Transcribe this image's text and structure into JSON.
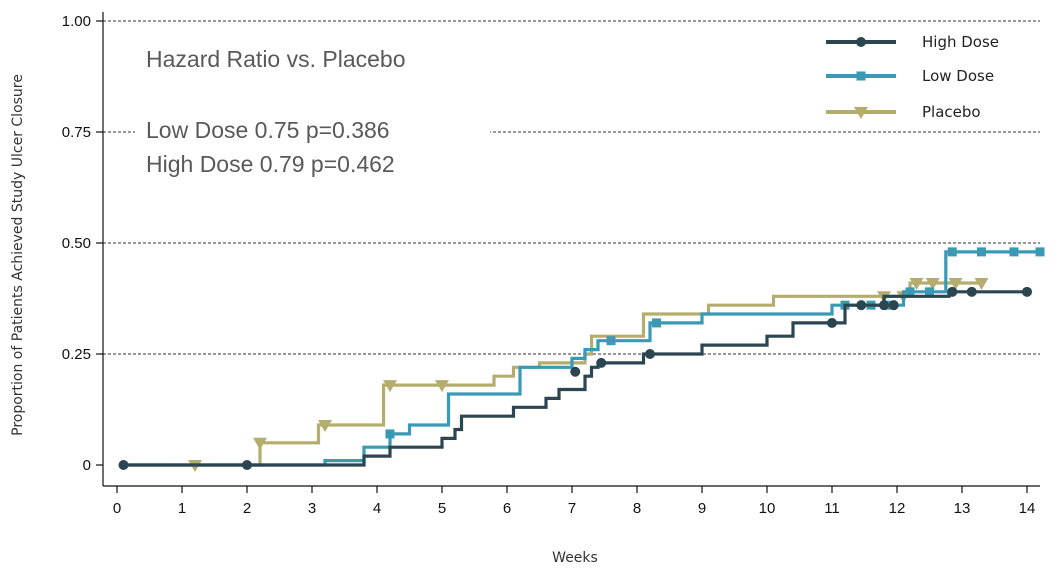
{
  "chart_data": {
    "type": "line",
    "step": true,
    "xlabel": "Weeks",
    "ylabel": "Proportion of Patients Achieved Study Ulcer Closure",
    "xlim": [
      0,
      14
    ],
    "ylim": [
      0,
      1.0
    ],
    "x_ticks": [
      0,
      1,
      2,
      3,
      4,
      5,
      6,
      7,
      8,
      9,
      10,
      11,
      12,
      13,
      14
    ],
    "y_ticks": [
      {
        "value": 0,
        "label": "0"
      },
      {
        "value": 0.25,
        "label": "0.25"
      },
      {
        "value": 0.5,
        "label": "0.50"
      },
      {
        "value": 0.75,
        "label": "0.75"
      },
      {
        "value": 1.0,
        "label": "1.00"
      }
    ],
    "grid": "horizontal-dashed",
    "legend_position": "top-right",
    "annotations": [
      "Hazard Ratio vs. Placebo",
      "Low Dose 0.75 p=0.386",
      "High Dose 0.79 p=0.462"
    ],
    "series": [
      {
        "name": "High Dose",
        "color": "#2b4651",
        "marker": "circle",
        "points": [
          [
            0.1,
            0
          ],
          [
            3.8,
            0
          ],
          [
            3.8,
            0.02
          ],
          [
            4.2,
            0.02
          ],
          [
            4.2,
            0.04
          ],
          [
            5,
            0.04
          ],
          [
            5,
            0.06
          ],
          [
            5.2,
            0.06
          ],
          [
            5.2,
            0.08
          ],
          [
            5.3,
            0.08
          ],
          [
            5.3,
            0.11
          ],
          [
            6.1,
            0.11
          ],
          [
            6.1,
            0.13
          ],
          [
            6.6,
            0.13
          ],
          [
            6.6,
            0.15
          ],
          [
            6.8,
            0.15
          ],
          [
            6.8,
            0.17
          ],
          [
            7.2,
            0.17
          ],
          [
            7.2,
            0.2
          ],
          [
            7.3,
            0.2
          ],
          [
            7.3,
            0.22
          ],
          [
            7.4,
            0.22
          ],
          [
            7.4,
            0.23
          ],
          [
            8.1,
            0.23
          ],
          [
            8.1,
            0.25
          ],
          [
            9,
            0.25
          ],
          [
            9,
            0.27
          ],
          [
            10,
            0.27
          ],
          [
            10,
            0.29
          ],
          [
            10.4,
            0.29
          ],
          [
            10.4,
            0.32
          ],
          [
            11.2,
            0.32
          ],
          [
            11.2,
            0.36
          ],
          [
            11.8,
            0.36
          ],
          [
            11.8,
            0.38
          ],
          [
            12.8,
            0.38
          ],
          [
            12.8,
            0.39
          ],
          [
            14,
            0.39
          ]
        ],
        "censored": [
          [
            0.1,
            0
          ],
          [
            2,
            0
          ],
          [
            7.05,
            0.21
          ],
          [
            7.45,
            0.23
          ],
          [
            8.2,
            0.25
          ],
          [
            11,
            0.32
          ],
          [
            11.45,
            0.36
          ],
          [
            11.8,
            0.36
          ],
          [
            11.95,
            0.36
          ],
          [
            12.85,
            0.39
          ],
          [
            13.15,
            0.39
          ],
          [
            14,
            0.39
          ]
        ]
      },
      {
        "name": "Low Dose",
        "color": "#3a9ab5",
        "marker": "square",
        "points": [
          [
            0.1,
            0
          ],
          [
            3.2,
            0
          ],
          [
            3.2,
            0.01
          ],
          [
            3.8,
            0.01
          ],
          [
            3.8,
            0.04
          ],
          [
            4.2,
            0.04
          ],
          [
            4.2,
            0.07
          ],
          [
            4.5,
            0.07
          ],
          [
            4.5,
            0.09
          ],
          [
            5.1,
            0.09
          ],
          [
            5.1,
            0.16
          ],
          [
            6.2,
            0.16
          ],
          [
            6.2,
            0.22
          ],
          [
            7,
            0.22
          ],
          [
            7,
            0.24
          ],
          [
            7.2,
            0.24
          ],
          [
            7.2,
            0.26
          ],
          [
            7.4,
            0.26
          ],
          [
            7.4,
            0.28
          ],
          [
            8.2,
            0.28
          ],
          [
            8.2,
            0.32
          ],
          [
            9,
            0.32
          ],
          [
            9,
            0.34
          ],
          [
            11,
            0.34
          ],
          [
            11,
            0.36
          ],
          [
            12.1,
            0.36
          ],
          [
            12.1,
            0.39
          ],
          [
            12.75,
            0.39
          ],
          [
            12.75,
            0.48
          ],
          [
            14.2,
            0.48
          ]
        ],
        "censored": [
          [
            4.2,
            0.07
          ],
          [
            7.6,
            0.28
          ],
          [
            8.3,
            0.32
          ],
          [
            11.2,
            0.36
          ],
          [
            11.6,
            0.36
          ],
          [
            11.85,
            0.36
          ],
          [
            12.2,
            0.39
          ],
          [
            12.5,
            0.39
          ],
          [
            12.85,
            0.48
          ],
          [
            13.3,
            0.48
          ],
          [
            13.8,
            0.48
          ],
          [
            14.2,
            0.48
          ]
        ]
      },
      {
        "name": "Placebo",
        "color": "#b5ad6e",
        "marker": "triangle-down",
        "points": [
          [
            0.1,
            0
          ],
          [
            2.2,
            0
          ],
          [
            2.2,
            0.05
          ],
          [
            3.1,
            0.05
          ],
          [
            3.1,
            0.09
          ],
          [
            4.1,
            0.09
          ],
          [
            4.1,
            0.18
          ],
          [
            5.8,
            0.18
          ],
          [
            5.8,
            0.2
          ],
          [
            6.1,
            0.2
          ],
          [
            6.1,
            0.22
          ],
          [
            6.5,
            0.22
          ],
          [
            6.5,
            0.23
          ],
          [
            7.2,
            0.23
          ],
          [
            7.2,
            0.25
          ],
          [
            7.3,
            0.25
          ],
          [
            7.3,
            0.29
          ],
          [
            8.1,
            0.29
          ],
          [
            8.1,
            0.34
          ],
          [
            9.1,
            0.34
          ],
          [
            9.1,
            0.36
          ],
          [
            10.1,
            0.36
          ],
          [
            10.1,
            0.38
          ],
          [
            12.2,
            0.38
          ],
          [
            12.2,
            0.41
          ],
          [
            13.3,
            0.41
          ]
        ],
        "censored": [
          [
            1.2,
            0
          ],
          [
            2.2,
            0.05
          ],
          [
            3.2,
            0.09
          ],
          [
            4.2,
            0.18
          ],
          [
            5,
            0.18
          ],
          [
            11.8,
            0.38
          ],
          [
            12.1,
            0.38
          ],
          [
            12.3,
            0.41
          ],
          [
            12.55,
            0.41
          ],
          [
            12.9,
            0.41
          ],
          [
            13.3,
            0.41
          ]
        ]
      }
    ]
  }
}
